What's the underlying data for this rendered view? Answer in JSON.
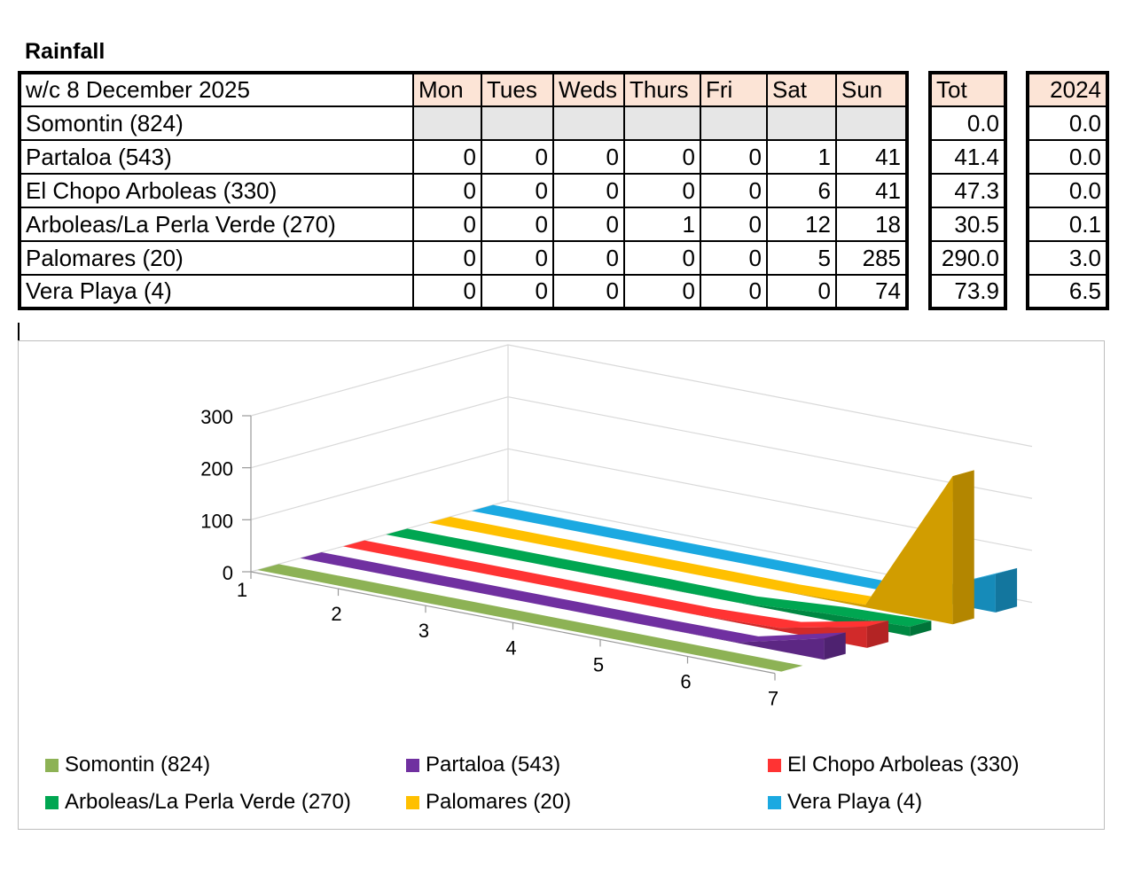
{
  "page": {
    "title": "Rainfall"
  },
  "table": {
    "week_label": "w/c 8 December  2025",
    "days": [
      "Mon",
      "Tues",
      "Weds",
      "Thurs",
      "Fri",
      "Sat",
      "Sun"
    ],
    "total_header": "Tot",
    "previous_header": "2024",
    "rows": [
      {
        "station": "Somontin (824)",
        "values": [
          "",
          "",
          "",
          "",
          "",
          "",
          ""
        ],
        "total": "0.0",
        "previous": "0.0"
      },
      {
        "station": "Partaloa (543)",
        "values": [
          "0",
          "0",
          "0",
          "0",
          "0",
          "1",
          "41"
        ],
        "total": "41.4",
        "previous": "0.0"
      },
      {
        "station": "El Chopo Arboleas (330)",
        "values": [
          "0",
          "0",
          "0",
          "0",
          "0",
          "6",
          "41"
        ],
        "total": "47.3",
        "previous": "0.0"
      },
      {
        "station": "Arboleas/La Perla Verde (270)",
        "values": [
          "0",
          "0",
          "0",
          "1",
          "0",
          "12",
          "18"
        ],
        "total": "30.5",
        "previous": "0.1"
      },
      {
        "station": "Palomares (20)",
        "values": [
          "0",
          "0",
          "0",
          "0",
          "0",
          "5",
          "285"
        ],
        "total": "290.0",
        "previous": "3.0"
      },
      {
        "station": "Vera Playa (4)",
        "values": [
          "0",
          "0",
          "0",
          "0",
          "0",
          "0",
          "74"
        ],
        "total": "73.9",
        "previous": "6.5"
      }
    ]
  },
  "chart_data": {
    "type": "area",
    "variant": "3d-ribbon",
    "x": [
      1,
      2,
      3,
      4,
      5,
      6,
      7
    ],
    "ylim": [
      0,
      300
    ],
    "yticks": [
      0,
      100,
      200,
      300
    ],
    "grid": true,
    "legend_position": "bottom",
    "series": [
      {
        "name": "Somontin (824)",
        "values": [
          0,
          0,
          0,
          0,
          0,
          0,
          0
        ],
        "color": "#8db255"
      },
      {
        "name": "Partaloa (543)",
        "values": [
          0,
          0,
          0,
          0,
          0,
          1,
          41
        ],
        "color": "#7030a0"
      },
      {
        "name": "El Chopo Arboleas (330)",
        "values": [
          0,
          0,
          0,
          0,
          0,
          6,
          41
        ],
        "color": "#ff3333"
      },
      {
        "name": "Arboleas/La Perla Verde (270)",
        "values": [
          0,
          0,
          0,
          1,
          0,
          12,
          18
        ],
        "color": "#00a651"
      },
      {
        "name": "Palomares (20)",
        "values": [
          0,
          0,
          0,
          0,
          0,
          5,
          285
        ],
        "color": "#ffc000"
      },
      {
        "name": "Vera Playa (4)",
        "values": [
          0,
          0,
          0,
          0,
          0,
          0,
          74
        ],
        "color": "#1ba9e1"
      }
    ]
  }
}
